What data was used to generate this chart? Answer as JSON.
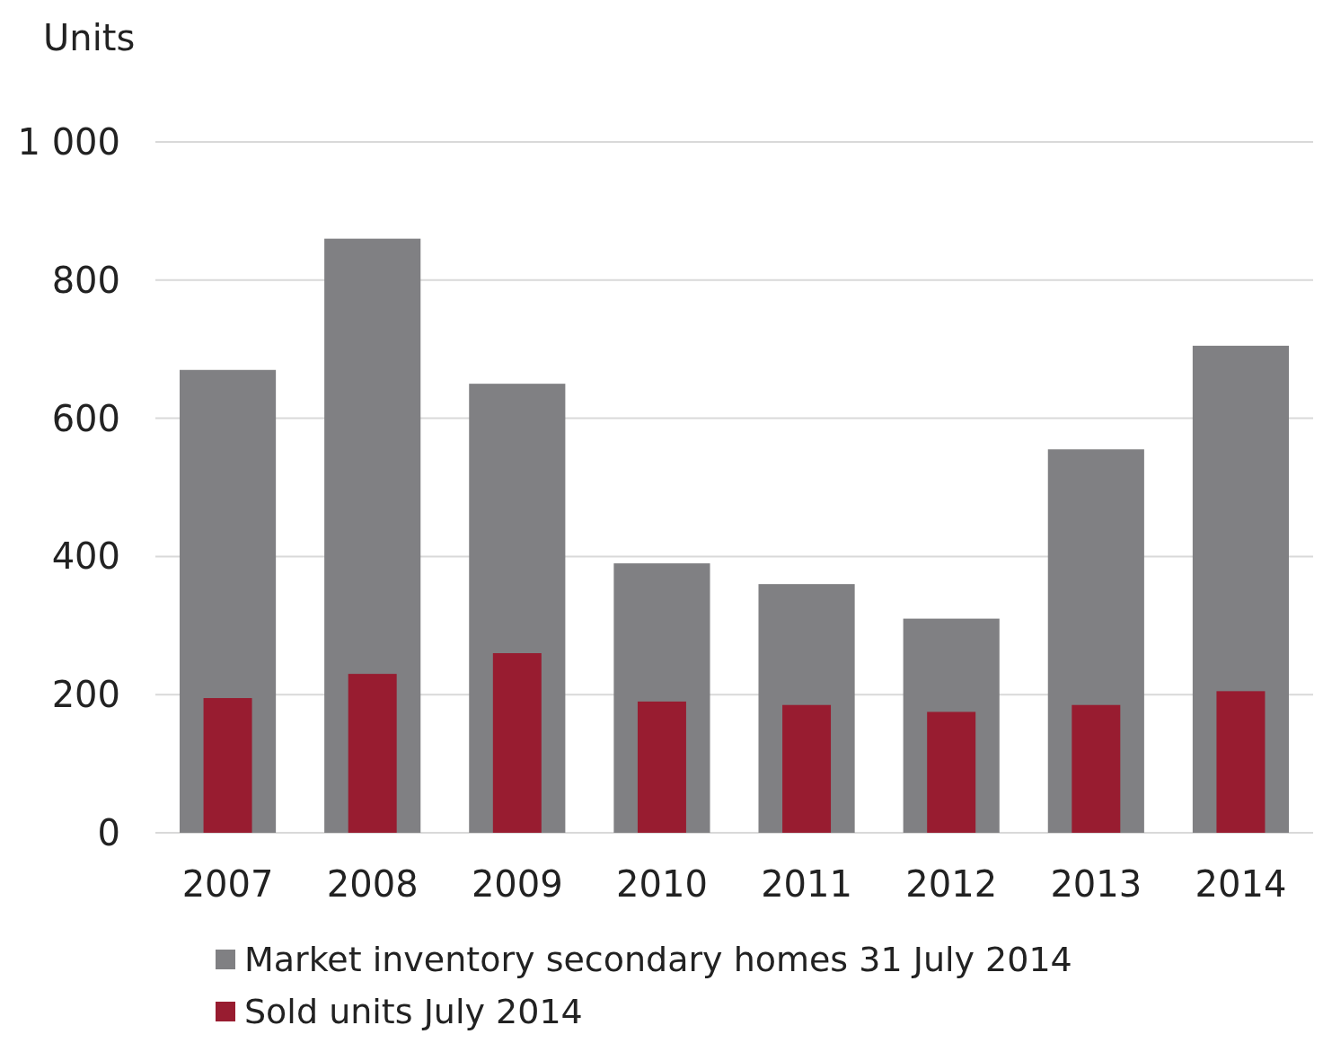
{
  "chart_data": {
    "type": "bar",
    "ylabel": "Units",
    "categories": [
      "2007",
      "2008",
      "2009",
      "2010",
      "2011",
      "2012",
      "2013",
      "2014"
    ],
    "series": [
      {
        "name": "Market inventory secondary homes 31 July 2014",
        "color": "#808083",
        "values": [
          670,
          860,
          650,
          390,
          360,
          310,
          555,
          705
        ]
      },
      {
        "name": "Sold units July 2014",
        "color": "#981c30",
        "values": [
          195,
          230,
          260,
          190,
          185,
          175,
          185,
          205
        ]
      }
    ],
    "ylim": [
      0,
      1000
    ],
    "yticks": [
      0,
      200,
      400,
      600,
      800,
      {
        "value": 1000,
        "label": "1 000"
      }
    ],
    "grid": "y",
    "legend": "bottom left"
  }
}
